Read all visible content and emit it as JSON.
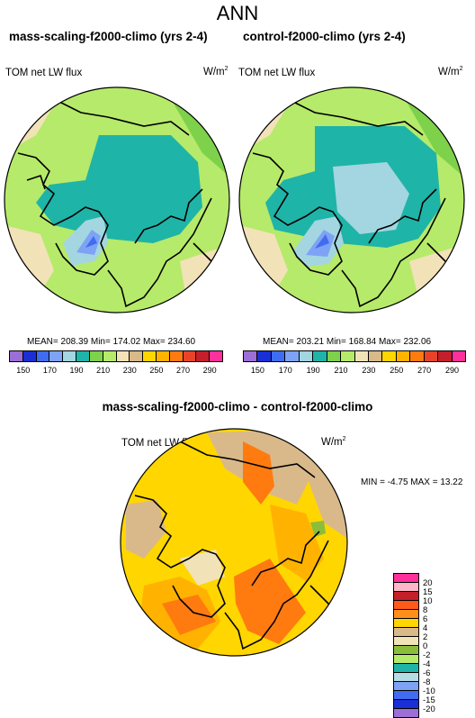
{
  "title": "ANN",
  "panels": [
    {
      "title": "mass-scaling-f2000-climo (yrs 2-4)",
      "variable": "TOM net LW flux",
      "units_base": "W/m",
      "units_sup": "2",
      "stats": "MEAN= 208.39  Min= 174.02  Max= 234.60"
    },
    {
      "title": "control-f2000-climo (yrs 2-4)",
      "variable": "TOM net LW flux",
      "units_base": "W/m",
      "units_sup": "2",
      "stats": "MEAN= 203.21  Min= 168.84  Max= 232.06"
    }
  ],
  "colorbar_main": {
    "colors": [
      "#9b6fd6",
      "#1a2fd6",
      "#3f6cf0",
      "#7ea3f5",
      "#a3d6e0",
      "#1fb4a8",
      "#7ed14a",
      "#b6ea6a",
      "#f2e2b8",
      "#d9b98a",
      "#ffd600",
      "#ffb300",
      "#ff7b10",
      "#e8432a",
      "#c41f2a",
      "#ff2f9c"
    ],
    "tick_labels": [
      "150",
      "170",
      "190",
      "210",
      "230",
      "250",
      "270",
      "290"
    ]
  },
  "diff": {
    "title": "mass-scaling-f2000-climo - control-f2000-climo",
    "variable": "TOM net LW flux",
    "units_base": "W/m",
    "units_sup": "2",
    "stats": "MIN =  -4.75 MAX =  13.22",
    "colorbar_colors": [
      "#ff2f9c",
      "#ffb6c9",
      "#c41f2a",
      "#ff5a1a",
      "#ff8f1a",
      "#ffd600",
      "#d9b98a",
      "#f2e2b8",
      "#8bbd3a",
      "#b6ea6a",
      "#1fb4a8",
      "#b5dde3",
      "#7ea3f5",
      "#3f6cf0",
      "#1a2fd6",
      "#9b6fd6"
    ],
    "tick_labels": [
      "20",
      "15",
      "10",
      "8",
      "6",
      "4",
      "2",
      "0",
      "-2",
      "-4",
      "-6",
      "-8",
      "-10",
      "-15",
      "-20"
    ]
  },
  "colors": {
    "ocean_left_outer": "#b6ea6a",
    "arctic_teal": "#1fb4a8",
    "greenland_blue": "#7ea3f5",
    "diff_base": "#ffd600",
    "diff_warm": "#ff8f1a"
  }
}
